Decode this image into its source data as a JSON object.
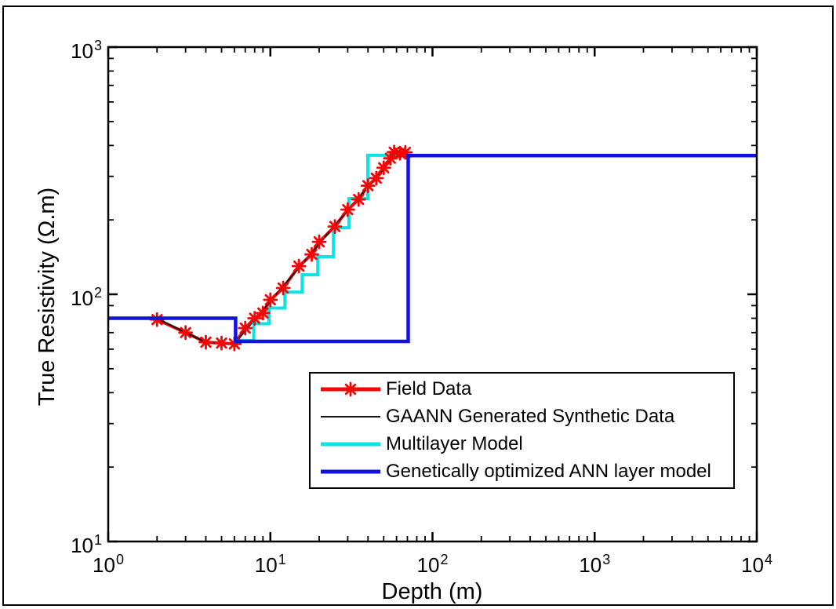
{
  "figure": {
    "background": "#ffffff",
    "frame_color": "#000000",
    "axis_color": "#000000"
  },
  "axes": {
    "xlabel": "Depth (m)",
    "ylabel": "True Resistivity (Ω.m)",
    "x_tick_labels": [
      {
        "base": "10",
        "exp": "0"
      },
      {
        "base": "10",
        "exp": "1"
      },
      {
        "base": "10",
        "exp": "2"
      },
      {
        "base": "10",
        "exp": "3"
      },
      {
        "base": "10",
        "exp": "4"
      }
    ],
    "y_tick_labels": [
      {
        "base": "10",
        "exp": "3"
      },
      {
        "base": "10",
        "exp": "2"
      },
      {
        "base": "10",
        "exp": "1"
      }
    ]
  },
  "legend": {
    "items": [
      {
        "label": "Field Data",
        "color": "#f50505",
        "line_height": 5,
        "marker": "asterisk"
      },
      {
        "label": "GAANN Generated Synthetic Data",
        "color": "#141414",
        "line_height": 2,
        "marker": ""
      },
      {
        "label": "Multilayer Model",
        "color": "#0ce3e3",
        "line_height": 5,
        "marker": ""
      },
      {
        "label": "Genetically optimized ANN layer model",
        "color": "#1212dd",
        "line_height": 5,
        "marker": ""
      }
    ]
  },
  "chart_data": {
    "type": "line",
    "x_scale": "log",
    "y_scale": "log",
    "xlim": [
      1,
      10000
    ],
    "ylim": [
      10,
      1000
    ],
    "xlabel": "Depth (m)",
    "ylabel": "True Resistivity (Ω.m)",
    "grid": false,
    "legend_position": "inside lower-center",
    "series": [
      {
        "name": "Field Data",
        "color": "#f50505",
        "width": 4,
        "marker": "asterisk",
        "points": [
          [
            2,
            79
          ],
          [
            3,
            70
          ],
          [
            4,
            64
          ],
          [
            5,
            63.5
          ],
          [
            6,
            63
          ],
          [
            7,
            73
          ],
          [
            8,
            80
          ],
          [
            9,
            84
          ],
          [
            10,
            95
          ],
          [
            12,
            106
          ],
          [
            15,
            130
          ],
          [
            18,
            145
          ],
          [
            20,
            163
          ],
          [
            25,
            188
          ],
          [
            30,
            220
          ],
          [
            35,
            242
          ],
          [
            40,
            275
          ],
          [
            45,
            295
          ],
          [
            50,
            325
          ],
          [
            55,
            355
          ],
          [
            58,
            376
          ],
          [
            63,
            372
          ],
          [
            68,
            375
          ]
        ]
      },
      {
        "name": "GAANN Generated Synthetic Data",
        "color": "#141414",
        "width": 2,
        "marker": "",
        "points": [
          [
            2,
            80
          ],
          [
            3,
            70
          ],
          [
            4,
            64
          ],
          [
            5,
            63.2
          ],
          [
            6,
            63
          ],
          [
            8,
            79
          ],
          [
            10,
            94
          ],
          [
            12,
            108
          ],
          [
            15,
            128
          ],
          [
            20,
            160
          ],
          [
            25,
            190
          ],
          [
            30,
            218
          ],
          [
            35,
            245
          ],
          [
            40,
            272
          ],
          [
            45,
            297
          ],
          [
            50,
            322
          ],
          [
            55,
            346
          ],
          [
            58,
            362
          ],
          [
            60,
            374
          ],
          [
            68,
            374
          ]
        ]
      },
      {
        "name": "Multilayer Model",
        "color": "#0ce3e3",
        "width": 4,
        "marker": "",
        "points": [
          [
            6.1,
            65
          ],
          [
            7.9,
            65
          ],
          [
            7.9,
            76
          ],
          [
            9.8,
            76
          ],
          [
            9.8,
            88
          ],
          [
            12.3,
            88
          ],
          [
            12.3,
            102
          ],
          [
            15.7,
            102
          ],
          [
            15.7,
            120
          ],
          [
            19.6,
            120
          ],
          [
            19.6,
            142
          ],
          [
            24.5,
            142
          ],
          [
            24.5,
            186
          ],
          [
            30.5,
            186
          ],
          [
            30.5,
            244
          ],
          [
            39.9,
            244
          ],
          [
            39.9,
            365
          ],
          [
            73,
            365
          ]
        ]
      },
      {
        "name": "Genetically optimized ANN layer model",
        "color": "#1212dd",
        "width": 4.5,
        "marker": "",
        "points": [
          [
            1,
            80
          ],
          [
            6.1,
            80
          ],
          [
            6.1,
            64.5
          ],
          [
            70.8,
            64.5
          ],
          [
            70.8,
            364
          ],
          [
            10000,
            364
          ]
        ]
      }
    ]
  }
}
